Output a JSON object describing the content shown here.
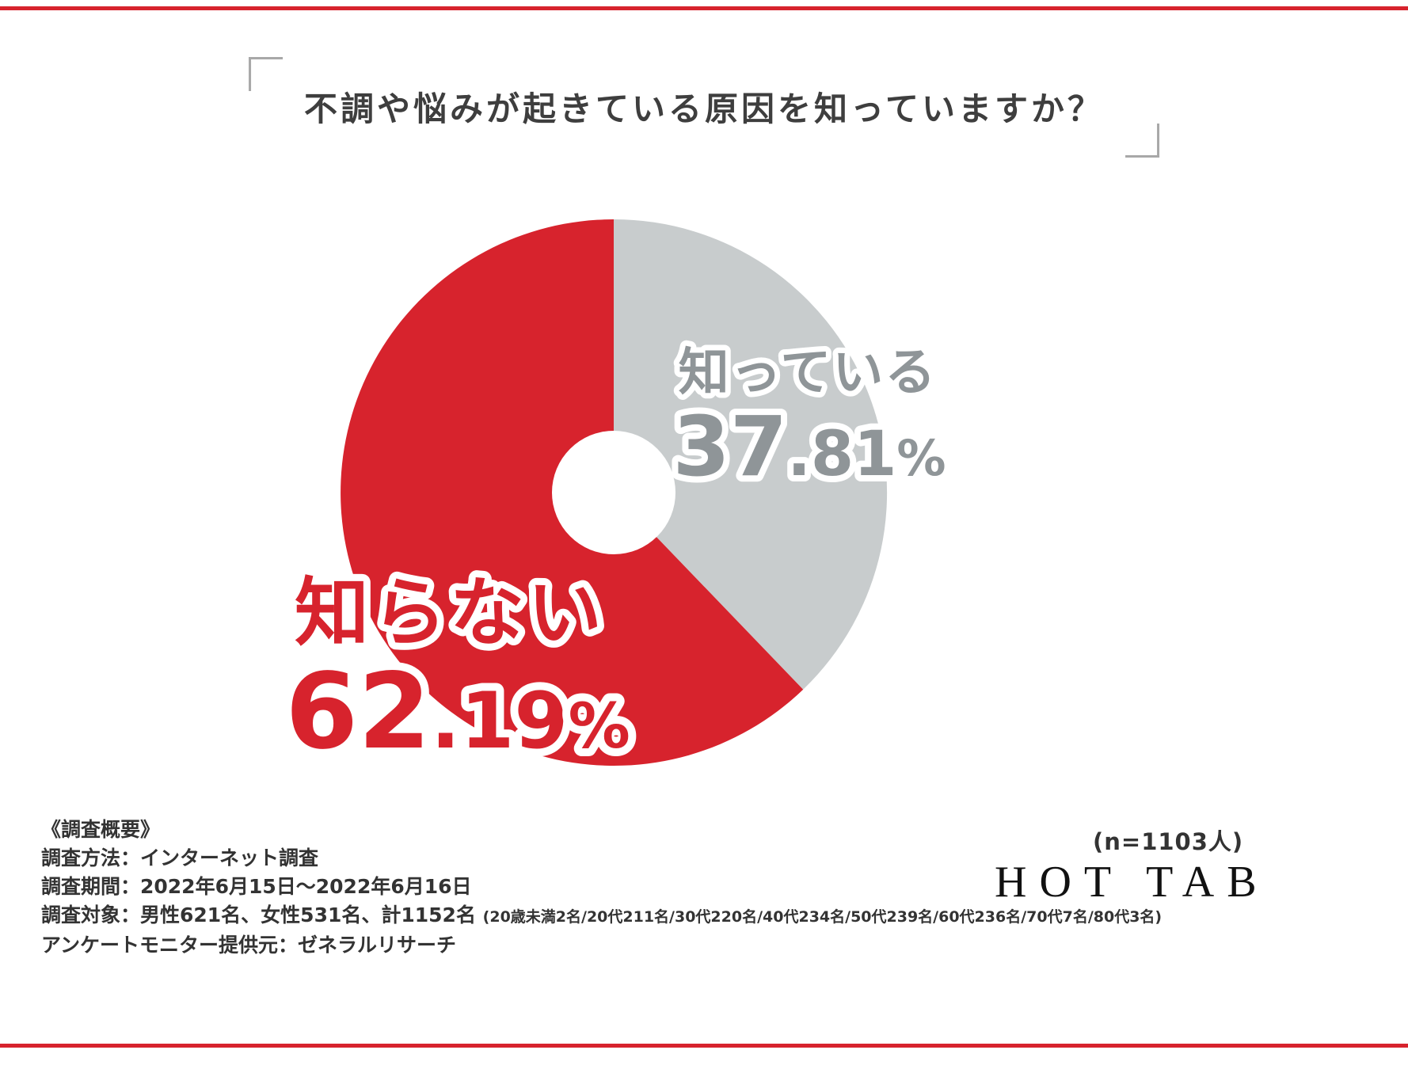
{
  "page": {
    "accent_red": "#d7232d",
    "bracket_gray": "#a8a8a8"
  },
  "title": "不調や悩みが起きている原因を知っていますか？",
  "chart_data": {
    "type": "pie",
    "donut": true,
    "title": "不調や悩みが起きている原因を知っていますか？",
    "start_angle": "top, clockwise",
    "legend_position": "labels-on-slices",
    "segments": [
      {
        "label": "知っている",
        "value": 37.81,
        "int": "37",
        "dec": ".81",
        "pct": "%",
        "color": "#c8cccd",
        "label_color": "#8f9598"
      },
      {
        "label": "知らない",
        "value": 62.19,
        "int": "62",
        "dec": ".19",
        "pct": "%",
        "color": "#d7232d",
        "label_color": "#d7232d"
      }
    ],
    "n_label": "(n=1103人)"
  },
  "survey": {
    "heading": "《調査概要》",
    "method": "調査方法：インターネット調査",
    "period": "調査期間：2022年6月15日～2022年6月16日",
    "subjects_main": "調査対象：男性621名、女性531名、計1152名",
    "subjects_detail": "(20歳未満2名/20代211名/30代220名/40代234名/50代239名/60代236名/70代7名/80代3名)",
    "monitor": "アンケートモニター提供元：ゼネラルリサーチ"
  },
  "sample_size_label": "(n=1103人)",
  "logo": "HOT TAB"
}
